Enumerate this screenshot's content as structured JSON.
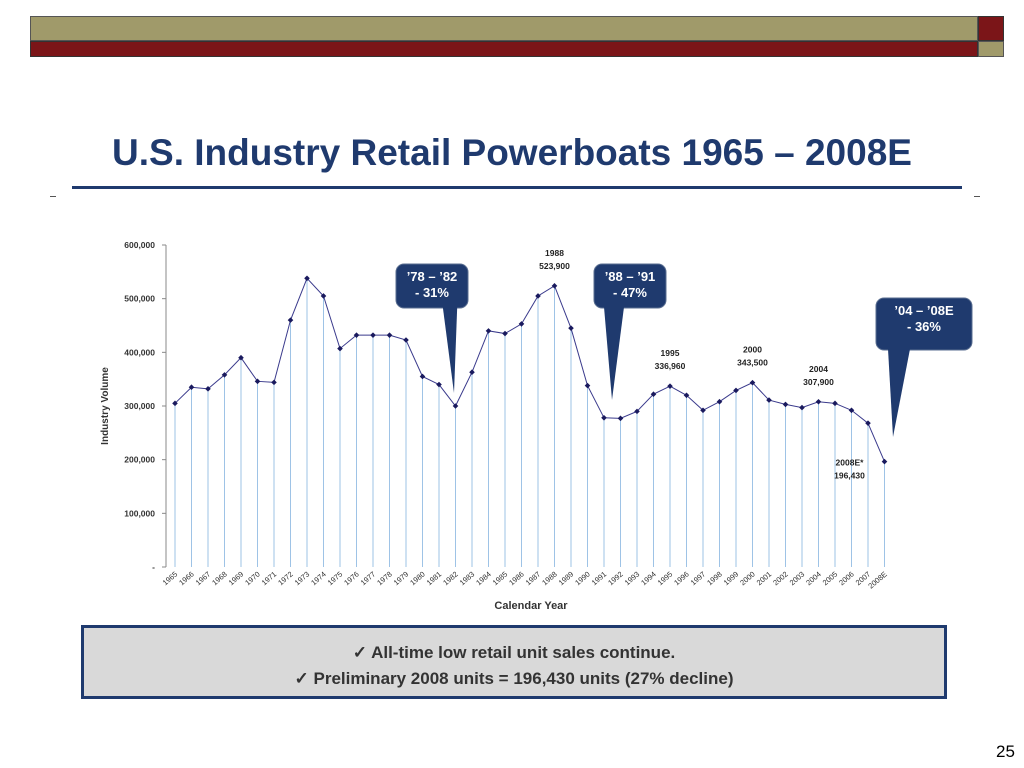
{
  "slide": {
    "title": "U.S. Industry Retail Powerboats 1965 – 2008E",
    "page_number": "25",
    "summary": [
      "All-time low retail unit sales continue.",
      "Preliminary 2008 units = 196,430 units (27% decline)"
    ],
    "check_glyph": "✓"
  },
  "colors": {
    "title": "#1F3A6E",
    "olive": "#A09A6A",
    "maroon": "#7B1518",
    "callout": "#1F3A6E",
    "line": "#3A3A8C",
    "droplines": "#9EC3E6"
  },
  "chart_data": {
    "type": "line",
    "xlabel": "Calendar Year",
    "ylabel": "Industry Volume",
    "ylim": [
      0,
      600000
    ],
    "yticks": [
      0,
      100000,
      200000,
      300000,
      400000,
      500000,
      600000
    ],
    "ytick_labels": [
      "-",
      "100,000",
      "200,000",
      "300,000",
      "400,000",
      "500,000",
      "600,000"
    ],
    "categories": [
      "1965",
      "1966",
      "1967",
      "1968",
      "1969",
      "1970",
      "1971",
      "1972",
      "1973",
      "1974",
      "1975",
      "1976",
      "1977",
      "1978",
      "1979",
      "1980",
      "1981",
      "1982",
      "1983",
      "1984",
      "1985",
      "1986",
      "1987",
      "1988",
      "1989",
      "1990",
      "1991",
      "1992",
      "1993",
      "1994",
      "1995",
      "1996",
      "1997",
      "1998",
      "1999",
      "2000",
      "2001",
      "2002",
      "2003",
      "2004",
      "2005",
      "2006",
      "2007",
      "2008E"
    ],
    "values": [
      305000,
      335000,
      332000,
      358000,
      390000,
      346000,
      344000,
      460000,
      538000,
      505000,
      407000,
      432000,
      432000,
      432000,
      423000,
      355000,
      340000,
      300000,
      363000,
      440000,
      435000,
      453000,
      505000,
      523900,
      445000,
      338000,
      278000,
      277000,
      290000,
      322000,
      336960,
      320000,
      292000,
      308000,
      329000,
      343500,
      311000,
      303000,
      297000,
      307900,
      305000,
      292000,
      268000,
      196430
    ],
    "point_labels": [
      {
        "year": "1988",
        "lines": [
          "1988",
          "523,900"
        ]
      },
      {
        "year": "1995",
        "lines": [
          "1995",
          "336,960"
        ]
      },
      {
        "year": "2000",
        "lines": [
          "2000",
          "343,500"
        ]
      },
      {
        "year": "2004",
        "lines": [
          "2004",
          "307,900"
        ]
      },
      {
        "year": "2008E",
        "lines": [
          "2008E*",
          "196,430"
        ]
      }
    ],
    "annotations": [
      {
        "lines": [
          "’78 – ’82",
          "- 31%"
        ],
        "points_to": "1982"
      },
      {
        "lines": [
          "’88 – ’91",
          "- 47%"
        ],
        "points_to": "1991"
      },
      {
        "lines": [
          "’04 – ’08E",
          "- 36%"
        ],
        "points_to": "2008E"
      }
    ]
  }
}
